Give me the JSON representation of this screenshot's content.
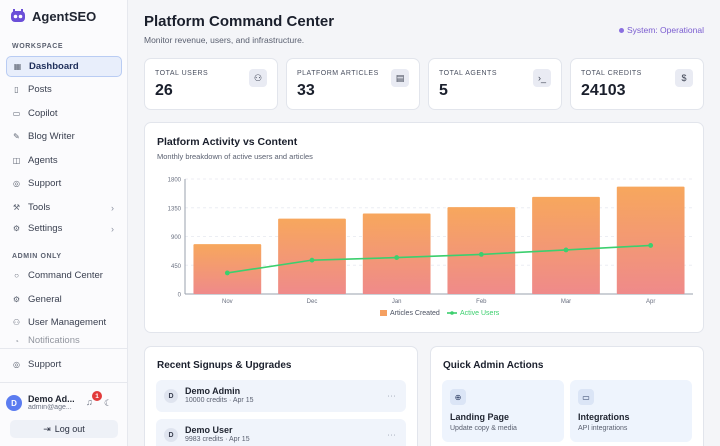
{
  "brand": {
    "name": "AgentSEO"
  },
  "sidebar": {
    "workspace_label": "WORKSPACE",
    "workspace_items": [
      {
        "label": "Dashboard",
        "icon": "grid-icon",
        "active": true
      },
      {
        "label": "Posts",
        "icon": "document-icon"
      },
      {
        "label": "Copilot",
        "icon": "chat-icon"
      },
      {
        "label": "Blog Writer",
        "icon": "pen-icon"
      },
      {
        "label": "Agents",
        "icon": "bot-icon"
      },
      {
        "label": "Support",
        "icon": "help-icon"
      },
      {
        "label": "Tools",
        "icon": "wrench-icon",
        "chevron": "›"
      },
      {
        "label": "Settings",
        "icon": "gear-icon",
        "chevron": "›"
      }
    ],
    "admin_label": "ADMIN ONLY",
    "admin_items": [
      {
        "label": "Command Center",
        "icon": "target-icon"
      },
      {
        "label": "General",
        "icon": "gear-icon"
      },
      {
        "label": "User Management",
        "icon": "users-icon"
      },
      {
        "label": "Notifications",
        "icon": "bell-icon"
      }
    ],
    "support_label": "Support",
    "user": {
      "initial": "D",
      "name": "Demo Ad...",
      "email": "admin@age...",
      "notifications": "1"
    },
    "logout_label": "Log out"
  },
  "header": {
    "title": "Platform Command Center",
    "subtitle": "Monitor revenue, users, and infrastructure.",
    "status": "System: Operational"
  },
  "stats": [
    {
      "label": "TOTAL USERS",
      "value": "26",
      "icon": "users-icon"
    },
    {
      "label": "PLATFORM ARTICLES",
      "value": "33",
      "icon": "document-icon"
    },
    {
      "label": "TOTAL AGENTS",
      "value": "5",
      "icon": "terminal-icon"
    },
    {
      "label": "TOTAL CREDITS",
      "value": "24103",
      "icon": "dollar-icon"
    }
  ],
  "chart": {
    "title": "Platform Activity vs Content",
    "subtitle": "Monthly breakdown of active users and articles"
  },
  "chart_data": {
    "type": "bar",
    "categories": [
      "Nov",
      "Dec",
      "Jan",
      "Feb",
      "Mar",
      "Apr"
    ],
    "series": [
      {
        "name": "Articles Created",
        "type": "bar",
        "color": "#f5a061",
        "values": [
          780,
          1180,
          1260,
          1360,
          1520,
          1680
        ]
      },
      {
        "name": "Active Users",
        "type": "line",
        "color": "#3ccf6e",
        "values": [
          330,
          530,
          570,
          620,
          690,
          760
        ]
      }
    ],
    "yticks": [
      0,
      450,
      900,
      1350,
      1800
    ],
    "ylim": [
      0,
      1800
    ],
    "grid": true,
    "legend": "bottom"
  },
  "signups": {
    "title": "Recent Signups & Upgrades",
    "rows": [
      {
        "initial": "D",
        "name": "Demo Admin",
        "meta": "10000 credits · Apr 15"
      },
      {
        "initial": "D",
        "name": "Demo User",
        "meta": "9983 credits · Apr 15"
      }
    ]
  },
  "quick_actions": {
    "title": "Quick Admin Actions",
    "tiles": [
      {
        "icon": "globe-icon",
        "title": "Landing Page",
        "subtitle": "Update copy & media"
      },
      {
        "icon": "card-icon",
        "title": "Integrations",
        "subtitle": "API integrations"
      }
    ]
  }
}
